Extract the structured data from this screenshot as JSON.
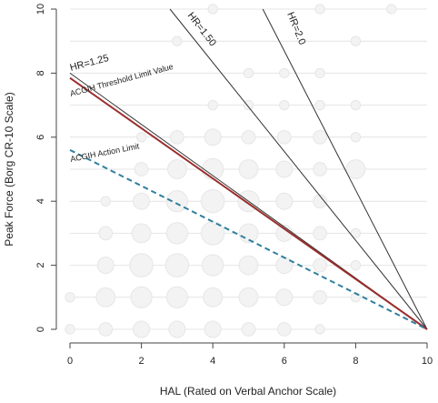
{
  "chart_data": {
    "type": "scatter",
    "xlabel": "HAL (Rated on Verbal Anchor Scale)",
    "ylabel": "Peak Force (Borg CR-10 Scale)",
    "xlim": [
      0,
      10
    ],
    "ylim": [
      0,
      10
    ],
    "x_ticks": [
      "0",
      "2",
      "4",
      "6",
      "8",
      "10"
    ],
    "y_ticks": [
      "0",
      "2",
      "4",
      "6",
      "8",
      "10"
    ],
    "grid": true,
    "colors": {
      "background": "#ffffff",
      "grid": "#e4e4e4",
      "bubble_fill": "#f3f3f3",
      "bubble_stroke": "#e6e6e6",
      "hr_line": "#333333",
      "tlv_line": "#9b2d2d",
      "al_line": "#2f7fa0"
    },
    "bubbles": [
      {
        "x": 0,
        "y": 0,
        "n": 1
      },
      {
        "x": 1,
        "y": 0,
        "n": 2
      },
      {
        "x": 2,
        "y": 0,
        "n": 3
      },
      {
        "x": 3,
        "y": 0,
        "n": 3
      },
      {
        "x": 4,
        "y": 0,
        "n": 3
      },
      {
        "x": 5,
        "y": 0,
        "n": 2
      },
      {
        "x": 6,
        "y": 0,
        "n": 2
      },
      {
        "x": 7,
        "y": 0,
        "n": 1
      },
      {
        "x": 0,
        "y": 1,
        "n": 1
      },
      {
        "x": 1,
        "y": 1,
        "n": 4
      },
      {
        "x": 2,
        "y": 1,
        "n": 5
      },
      {
        "x": 3,
        "y": 1,
        "n": 5
      },
      {
        "x": 4,
        "y": 1,
        "n": 4
      },
      {
        "x": 5,
        "y": 1,
        "n": 4
      },
      {
        "x": 6,
        "y": 1,
        "n": 3
      },
      {
        "x": 7,
        "y": 1,
        "n": 2
      },
      {
        "x": 8,
        "y": 1,
        "n": 1
      },
      {
        "x": 1,
        "y": 2,
        "n": 3
      },
      {
        "x": 2,
        "y": 2,
        "n": 6
      },
      {
        "x": 3,
        "y": 2,
        "n": 6
      },
      {
        "x": 4,
        "y": 2,
        "n": 5
      },
      {
        "x": 5,
        "y": 2,
        "n": 4
      },
      {
        "x": 6,
        "y": 2,
        "n": 3
      },
      {
        "x": 7,
        "y": 2,
        "n": 2
      },
      {
        "x": 8,
        "y": 2,
        "n": 1
      },
      {
        "x": 1,
        "y": 3,
        "n": 2
      },
      {
        "x": 2,
        "y": 3,
        "n": 4
      },
      {
        "x": 3,
        "y": 3,
        "n": 5
      },
      {
        "x": 4,
        "y": 3,
        "n": 6
      },
      {
        "x": 5,
        "y": 3,
        "n": 4
      },
      {
        "x": 6,
        "y": 3,
        "n": 3
      },
      {
        "x": 7,
        "y": 3,
        "n": 2
      },
      {
        "x": 8,
        "y": 3,
        "n": 1
      },
      {
        "x": 1,
        "y": 4,
        "n": 1
      },
      {
        "x": 2,
        "y": 4,
        "n": 3
      },
      {
        "x": 3,
        "y": 4,
        "n": 5
      },
      {
        "x": 4,
        "y": 4,
        "n": 6
      },
      {
        "x": 5,
        "y": 4,
        "n": 5
      },
      {
        "x": 6,
        "y": 4,
        "n": 3
      },
      {
        "x": 7,
        "y": 4,
        "n": 2
      },
      {
        "x": 2,
        "y": 5,
        "n": 2
      },
      {
        "x": 3,
        "y": 5,
        "n": 4
      },
      {
        "x": 4,
        "y": 5,
        "n": 5
      },
      {
        "x": 5,
        "y": 5,
        "n": 4
      },
      {
        "x": 6,
        "y": 5,
        "n": 3
      },
      {
        "x": 7,
        "y": 5,
        "n": 2
      },
      {
        "x": 8,
        "y": 5,
        "n": 4
      },
      {
        "x": 2,
        "y": 6,
        "n": 1
      },
      {
        "x": 3,
        "y": 6,
        "n": 2
      },
      {
        "x": 4,
        "y": 6,
        "n": 3
      },
      {
        "x": 5,
        "y": 6,
        "n": 2
      },
      {
        "x": 6,
        "y": 6,
        "n": 2
      },
      {
        "x": 7,
        "y": 6,
        "n": 2
      },
      {
        "x": 8,
        "y": 6,
        "n": 1
      },
      {
        "x": 4,
        "y": 7,
        "n": 1
      },
      {
        "x": 5,
        "y": 7,
        "n": 1
      },
      {
        "x": 6,
        "y": 7,
        "n": 1
      },
      {
        "x": 7,
        "y": 7,
        "n": 1
      },
      {
        "x": 8,
        "y": 7,
        "n": 1
      },
      {
        "x": 5,
        "y": 8,
        "n": 1
      },
      {
        "x": 6,
        "y": 8,
        "n": 1
      },
      {
        "x": 7,
        "y": 8,
        "n": 1
      },
      {
        "x": 3,
        "y": 9,
        "n": 1
      },
      {
        "x": 8,
        "y": 9,
        "n": 1
      },
      {
        "x": 4,
        "y": 10,
        "n": 1
      },
      {
        "x": 7,
        "y": 10,
        "n": 1
      },
      {
        "x": 9,
        "y": 10,
        "n": 1
      }
    ],
    "lines": [
      {
        "name": "HR=1.25",
        "color_key": "hr_line",
        "dashed": false,
        "width": 1,
        "points": [
          [
            0,
            8.0
          ],
          [
            10,
            0
          ]
        ]
      },
      {
        "name": "HR=1.50",
        "color_key": "hr_line",
        "dashed": false,
        "width": 1,
        "points": [
          [
            2.8,
            10
          ],
          [
            10,
            0
          ]
        ]
      },
      {
        "name": "HR=2.0",
        "color_key": "hr_line",
        "dashed": false,
        "width": 1,
        "points": [
          [
            5.4,
            10
          ],
          [
            10,
            0
          ]
        ]
      },
      {
        "name": "ACGIH Threshold Limit Value",
        "color_key": "tlv_line",
        "dashed": false,
        "width": 2,
        "points": [
          [
            0,
            7.85
          ],
          [
            10,
            0
          ]
        ]
      },
      {
        "name": "ACGIH Action Limit",
        "color_key": "al_line",
        "dashed": true,
        "width": 2,
        "points": [
          [
            0,
            5.6
          ],
          [
            10,
            0
          ]
        ]
      }
    ],
    "annotations": [
      "HR=1.25",
      "HR=1.50",
      "HR=2.0",
      "ACGIH Threshold Limit Value",
      "ACGIH Action Limit"
    ]
  }
}
